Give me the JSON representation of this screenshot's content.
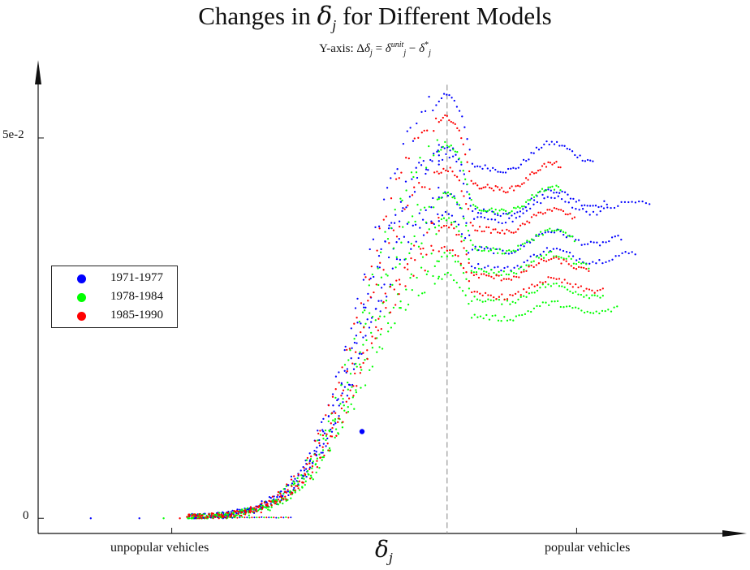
{
  "chart_data": {
    "type": "scatter",
    "title": {
      "prefix": "Changes in ",
      "symbol": "δ",
      "sub": "j",
      "suffix": " for Different Models"
    },
    "subtitle": {
      "prefix": "Y-axis: Δ",
      "d1": "δ",
      "d1_sub": "j",
      "eq": " = ",
      "d2": "δ",
      "d2_sup": "unit",
      "d2_sub": "j",
      "minus": " − ",
      "d3": "δ",
      "d3_sup": "*",
      "d3_sub": "j"
    },
    "xlabel": {
      "symbol": "δ",
      "sub": "j"
    },
    "x_tick_labels": [
      {
        "x": -5,
        "label": "unpopular vehicles"
      },
      {
        "x": 5,
        "label": "popular vehicles"
      }
    ],
    "y_tick_labels": [
      {
        "y": 0,
        "label": "0"
      },
      {
        "y": 0.05,
        "label": "5e-2"
      }
    ],
    "vline_x": 1.8,
    "xlim": [
      -8.3,
      8.5
    ],
    "ylim": [
      -0.002,
      0.058
    ],
    "legend_position": "left-middle",
    "grid": false,
    "series": [
      {
        "name": "1971-1977",
        "color": "#0000ff",
        "bands": [
          0.0558,
          0.0488,
          0.0427,
          0.04,
          0.0477
        ]
      },
      {
        "name": "1978-1984",
        "color": "#00ff00",
        "bands": [
          0.0492,
          0.0428,
          0.0393,
          0.0347,
          0.032
        ]
      },
      {
        "name": "1985-1990",
        "color": "#ff0000",
        "bands": [
          0.0527,
          0.0459,
          0.0385,
          0.0355
        ]
      }
    ],
    "tail_points": [
      {
        "x": -7.0,
        "y": 0.0,
        "series": 0
      },
      {
        "x": -5.8,
        "y": 0.0,
        "series": 0
      },
      {
        "x": -5.2,
        "y": 0.0,
        "series": 1
      },
      {
        "x": -4.8,
        "y": 0.0,
        "series": 2
      },
      {
        "x": -4.5,
        "y": 0.0,
        "series": 1
      }
    ],
    "highlight_point": {
      "x": -0.3,
      "y": 0.0114,
      "series": 0
    }
  }
}
